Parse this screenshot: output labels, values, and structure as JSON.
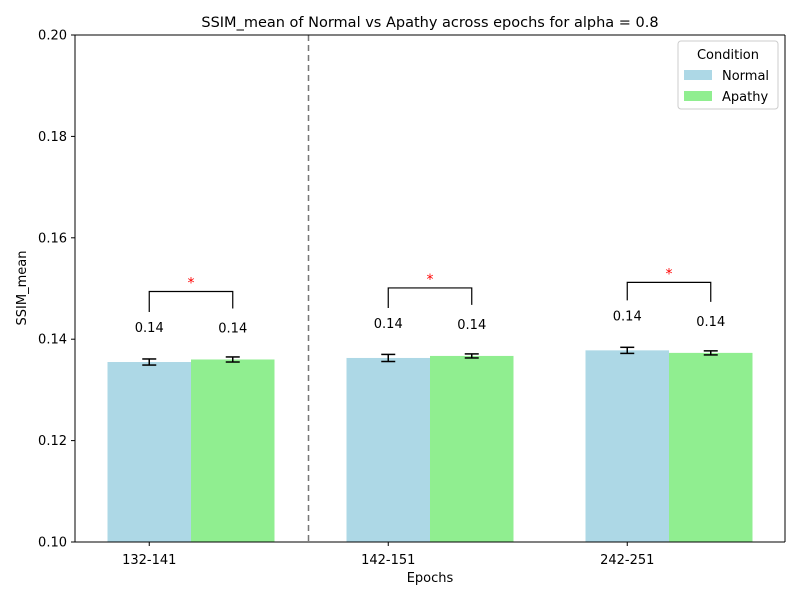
{
  "chart_data": {
    "type": "bar",
    "title": "SSIM_mean of Normal vs Apathy across epochs for alpha = 0.8",
    "xlabel": "Epochs",
    "ylabel": "SSIM_mean",
    "ylim": [
      0.1,
      0.2
    ],
    "yticks": [
      "0.10",
      "0.12",
      "0.14",
      "0.16",
      "0.18",
      "0.20"
    ],
    "categories": [
      "132-141",
      "142-151",
      "242-251"
    ],
    "series": [
      {
        "name": "Normal",
        "color": "#add8e6",
        "values": [
          0.1355,
          0.1363,
          0.1378
        ],
        "errors": [
          0.0006,
          0.0007,
          0.0006
        ],
        "labels": [
          "0.14",
          "0.14",
          "0.14"
        ]
      },
      {
        "name": "Apathy",
        "color": "#90ee90",
        "values": [
          0.136,
          0.1367,
          0.1373
        ],
        "errors": [
          0.0005,
          0.0004,
          0.0004
        ],
        "labels": [
          "0.14",
          "0.14",
          "0.14"
        ]
      }
    ],
    "significance": [
      "*",
      "*",
      "*"
    ],
    "significance_color": "#ff0000",
    "divider_after_category": 0,
    "legend": {
      "title": "Condition",
      "position": "top-right"
    },
    "grid": false
  }
}
